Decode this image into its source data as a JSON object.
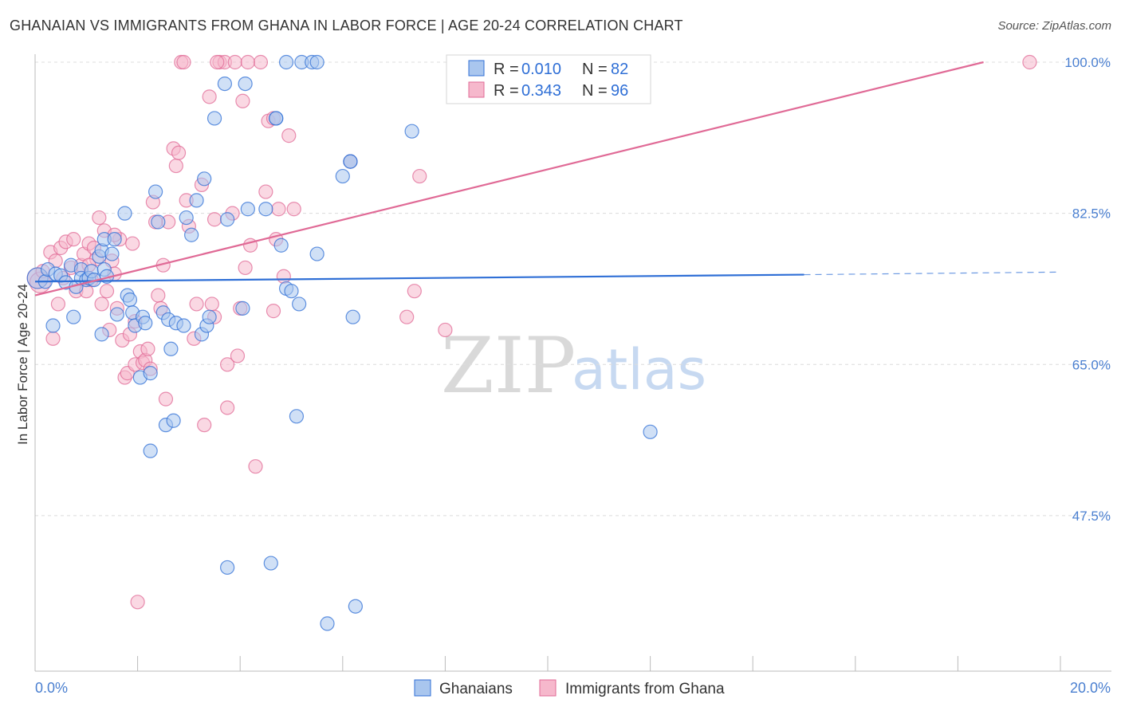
{
  "title": "GHANAIAN VS IMMIGRANTS FROM GHANA IN LABOR FORCE | AGE 20-24 CORRELATION CHART",
  "source": "Source: ZipAtlas.com",
  "watermark": {
    "zip": "ZIP",
    "atlas": "atlas"
  },
  "colors": {
    "blue": "#2f6fd6",
    "blue_fill": "#a9c6ee",
    "pink": "#e06a96",
    "pink_fill": "#f6b8cc"
  },
  "legend": {
    "rows": [
      {
        "r_label": "R =",
        "r_value": "0.010",
        "n_label": "N =",
        "n_value": "82"
      },
      {
        "r_label": "R =",
        "r_value": "0.343",
        "n_label": "N =",
        "n_value": "96"
      }
    ]
  },
  "chart_data": {
    "type": "scatter",
    "title": "GHANAIAN VS IMMIGRANTS FROM GHANA IN LABOR FORCE | AGE 20-24 CORRELATION CHART",
    "xlabel": "",
    "ylabel": "In Labor Force | Age 20-24",
    "xlim": [
      0,
      20
    ],
    "ylim": [
      29.5,
      100
    ],
    "x_tick_labels": [
      "0.0%",
      "20.0%"
    ],
    "y_ticks": [
      47.5,
      65.0,
      82.5,
      100.0
    ],
    "y_tick_labels": [
      "47.5%",
      "65.0%",
      "82.5%",
      "100.0%"
    ],
    "series": [
      {
        "name": "Ghanaians",
        "color": "#2f6fd6",
        "trend": {
          "x0": 0,
          "y0": 74.6,
          "x1": 15.0,
          "y1": 75.4,
          "dash_x1": 20.0,
          "dash_y1": 75.7
        },
        "points": [
          [
            0.05,
            75.0
          ],
          [
            0.2,
            74.6
          ],
          [
            0.25,
            76.0
          ],
          [
            0.35,
            69.5
          ],
          [
            0.4,
            75.5
          ],
          [
            0.5,
            75.3
          ],
          [
            0.6,
            74.5
          ],
          [
            0.7,
            76.5
          ],
          [
            0.75,
            70.5
          ],
          [
            0.8,
            74.0
          ],
          [
            0.9,
            76.0
          ],
          [
            0.9,
            75.0
          ],
          [
            1.0,
            74.8
          ],
          [
            1.05,
            75.0
          ],
          [
            1.1,
            75.8
          ],
          [
            1.15,
            74.8
          ],
          [
            1.25,
            77.5
          ],
          [
            1.3,
            78.2
          ],
          [
            1.3,
            68.5
          ],
          [
            1.35,
            79.5
          ],
          [
            1.35,
            76.0
          ],
          [
            1.4,
            75.2
          ],
          [
            1.5,
            77.8
          ],
          [
            1.55,
            79.5
          ],
          [
            1.6,
            70.8
          ],
          [
            1.75,
            82.5
          ],
          [
            1.8,
            73.0
          ],
          [
            1.85,
            72.5
          ],
          [
            1.9,
            71.0
          ],
          [
            1.95,
            69.5
          ],
          [
            2.05,
            63.5
          ],
          [
            2.1,
            70.5
          ],
          [
            2.15,
            69.8
          ],
          [
            2.25,
            55.0
          ],
          [
            2.25,
            64.0
          ],
          [
            2.35,
            85.0
          ],
          [
            2.4,
            81.5
          ],
          [
            2.5,
            71.0
          ],
          [
            2.55,
            58.0
          ],
          [
            2.6,
            70.2
          ],
          [
            2.65,
            66.8
          ],
          [
            2.7,
            58.5
          ],
          [
            2.75,
            69.8
          ],
          [
            2.9,
            69.5
          ],
          [
            2.95,
            82.0
          ],
          [
            3.05,
            80.0
          ],
          [
            3.15,
            84.0
          ],
          [
            3.25,
            68.5
          ],
          [
            3.3,
            86.5
          ],
          [
            3.35,
            69.5
          ],
          [
            3.4,
            70.5
          ],
          [
            3.5,
            93.5
          ],
          [
            3.7,
            97.5
          ],
          [
            3.75,
            41.5
          ],
          [
            3.75,
            81.8
          ],
          [
            4.05,
            71.5
          ],
          [
            4.1,
            97.5
          ],
          [
            4.15,
            83.0
          ],
          [
            4.5,
            83.0
          ],
          [
            4.6,
            42.0
          ],
          [
            4.7,
            93.5
          ],
          [
            4.8,
            78.8
          ],
          [
            4.9,
            73.8
          ],
          [
            5.0,
            73.5
          ],
          [
            5.1,
            59.0
          ],
          [
            5.15,
            72.0
          ],
          [
            5.5,
            77.8
          ],
          [
            5.7,
            35.0
          ],
          [
            6.0,
            86.8
          ],
          [
            6.15,
            88.5
          ],
          [
            6.2,
            70.5
          ],
          [
            6.25,
            37.0
          ],
          [
            7.35,
            92.0
          ],
          [
            12.0,
            57.2
          ],
          [
            4.7,
            93.5
          ],
          [
            6.15,
            88.5
          ],
          [
            4.9,
            100.0
          ],
          [
            5.2,
            100.0
          ],
          [
            5.4,
            100.0
          ],
          [
            5.5,
            100.0
          ]
        ]
      },
      {
        "name": "Immigrants from Ghana",
        "color": "#e06a96",
        "trend": {
          "x0": 0,
          "y0": 73.0,
          "x1": 18.5,
          "y1": 100.0
        },
        "points": [
          [
            0.05,
            75.0
          ],
          [
            0.1,
            74.5
          ],
          [
            0.15,
            75.8
          ],
          [
            0.3,
            78.0
          ],
          [
            0.35,
            68.0
          ],
          [
            0.4,
            77.0
          ],
          [
            0.45,
            72.0
          ],
          [
            0.5,
            78.5
          ],
          [
            0.55,
            75.0
          ],
          [
            0.6,
            79.2
          ],
          [
            0.7,
            76.2
          ],
          [
            0.75,
            79.5
          ],
          [
            0.8,
            73.5
          ],
          [
            0.9,
            76.5
          ],
          [
            0.95,
            77.8
          ],
          [
            1.0,
            73.5
          ],
          [
            1.05,
            79.0
          ],
          [
            1.1,
            74.8
          ],
          [
            1.15,
            78.5
          ],
          [
            1.2,
            77.2
          ],
          [
            1.25,
            82.0
          ],
          [
            1.3,
            72.0
          ],
          [
            1.35,
            80.5
          ],
          [
            1.4,
            73.5
          ],
          [
            1.45,
            69.0
          ],
          [
            1.5,
            77.0
          ],
          [
            1.55,
            75.5
          ],
          [
            1.6,
            71.5
          ],
          [
            1.65,
            79.5
          ],
          [
            1.7,
            67.8
          ],
          [
            1.75,
            63.5
          ],
          [
            1.8,
            64.0
          ],
          [
            1.85,
            68.5
          ],
          [
            1.9,
            79.0
          ],
          [
            1.95,
            65.0
          ],
          [
            2.0,
            37.5
          ],
          [
            2.05,
            66.5
          ],
          [
            2.1,
            65.2
          ],
          [
            2.15,
            65.5
          ],
          [
            2.2,
            66.8
          ],
          [
            2.25,
            64.5
          ],
          [
            2.3,
            83.8
          ],
          [
            2.4,
            73.0
          ],
          [
            2.45,
            71.5
          ],
          [
            2.5,
            76.5
          ],
          [
            2.55,
            61.0
          ],
          [
            2.6,
            81.5
          ],
          [
            2.7,
            90.0
          ],
          [
            2.75,
            88.0
          ],
          [
            2.8,
            89.5
          ],
          [
            2.85,
            100.0
          ],
          [
            2.95,
            84.0
          ],
          [
            3.0,
            81.0
          ],
          [
            3.1,
            68.0
          ],
          [
            3.15,
            72.0
          ],
          [
            3.25,
            85.8
          ],
          [
            3.3,
            58.0
          ],
          [
            3.4,
            96.0
          ],
          [
            3.45,
            72.0
          ],
          [
            3.5,
            81.8
          ],
          [
            3.5,
            70.5
          ],
          [
            3.6,
            100.0
          ],
          [
            3.7,
            100.0
          ],
          [
            3.75,
            65.0
          ],
          [
            3.75,
            60.0
          ],
          [
            3.85,
            82.5
          ],
          [
            3.9,
            100.0
          ],
          [
            3.95,
            66.0
          ],
          [
            4.0,
            71.5
          ],
          [
            4.05,
            95.5
          ],
          [
            4.1,
            76.2
          ],
          [
            4.2,
            78.8
          ],
          [
            4.3,
            53.2
          ],
          [
            4.4,
            100.0
          ],
          [
            4.5,
            85.0
          ],
          [
            4.55,
            93.2
          ],
          [
            4.65,
            71.2
          ],
          [
            4.7,
            79.5
          ],
          [
            4.75,
            83.0
          ],
          [
            4.85,
            75.2
          ],
          [
            4.95,
            91.5
          ],
          [
            5.05,
            83.0
          ],
          [
            6.15,
            88.5
          ],
          [
            7.25,
            70.5
          ],
          [
            7.4,
            73.5
          ],
          [
            7.5,
            86.8
          ],
          [
            8.0,
            69.0
          ],
          [
            19.4,
            100.0
          ],
          [
            4.15,
            100.0
          ],
          [
            4.65,
            93.5
          ],
          [
            2.9,
            100.0
          ],
          [
            3.55,
            100.0
          ],
          [
            1.55,
            80.0
          ],
          [
            2.35,
            81.5
          ],
          [
            1.05,
            76.5
          ],
          [
            1.95,
            70.0
          ]
        ]
      }
    ]
  },
  "bottom_legend": {
    "items": [
      {
        "label": "Ghanaians"
      },
      {
        "label": "Immigrants from Ghana"
      }
    ]
  }
}
